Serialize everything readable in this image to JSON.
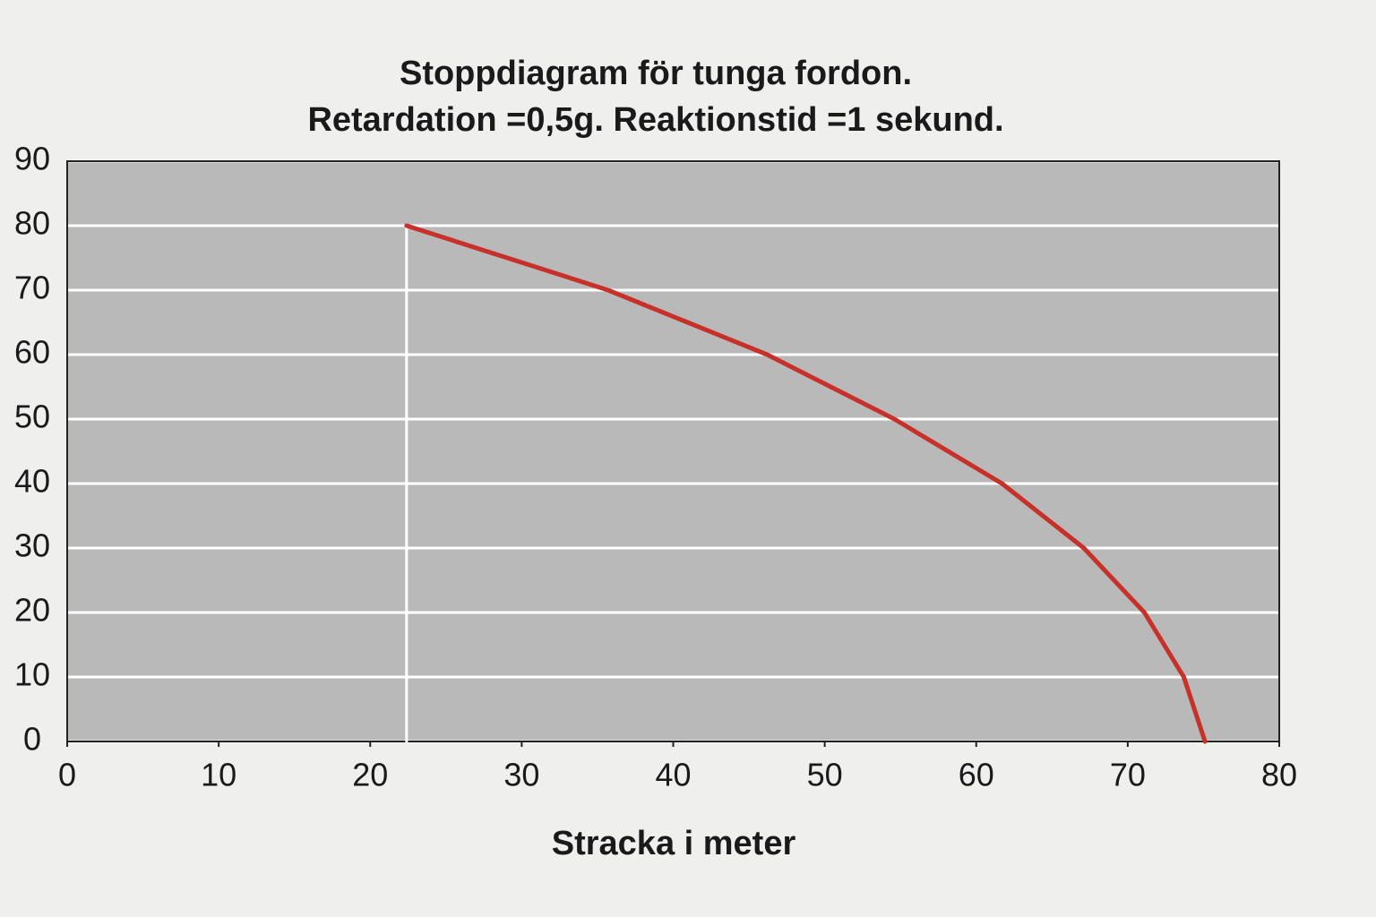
{
  "chart_data": {
    "type": "line",
    "title": "Stoppdiagram för tunga fordon.",
    "subtitle": "Retardation =0,5g. Reaktionstid =1 sekund.",
    "x_label": "Stracka i meter",
    "series": [
      {
        "color": "#c8302a",
        "x": [
          22.4,
          35.7,
          46.2,
          54.6,
          61.7,
          67.1,
          71.1,
          73.7,
          75.1
        ],
        "values": [
          80,
          70,
          60,
          50,
          40,
          30,
          20,
          10,
          0
        ]
      },
      {
        "color": "#ffffff",
        "x": [
          22.4,
          22.4
        ],
        "values": [
          0,
          80
        ]
      }
    ],
    "xlim": [
      0,
      80
    ],
    "xticks": [
      0,
      10,
      20,
      30,
      40,
      50,
      60,
      70,
      80
    ],
    "ylim": [
      0,
      90
    ],
    "yticks": [
      0,
      10,
      20,
      30,
      40,
      50,
      60,
      70,
      80,
      90
    ],
    "grid": true
  }
}
